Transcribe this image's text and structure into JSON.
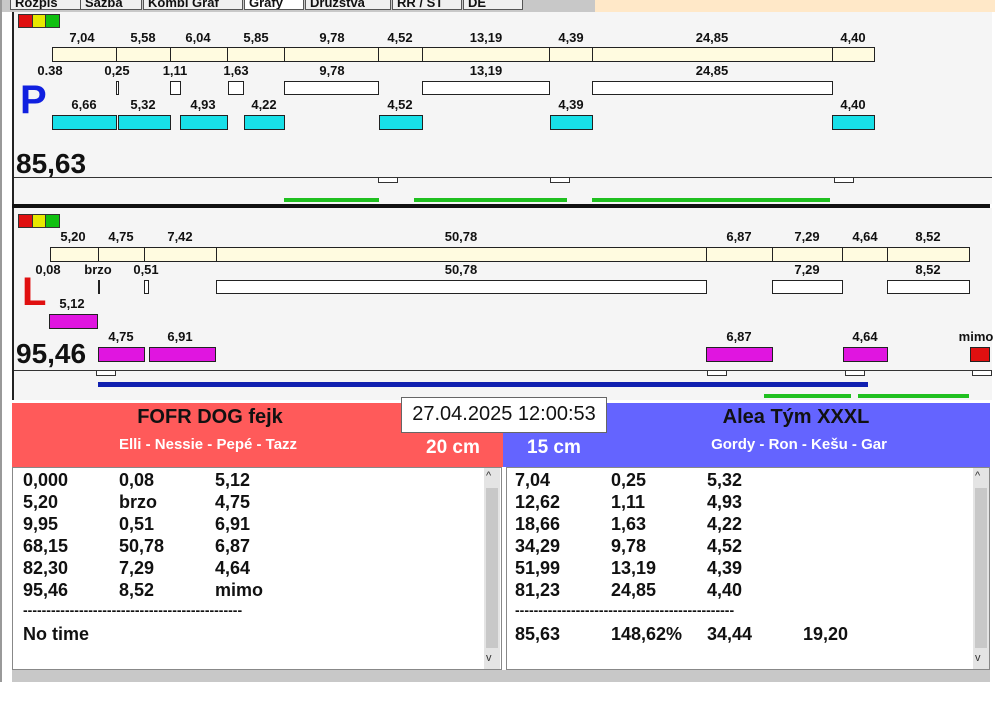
{
  "tabs": [
    "Rozpis",
    "Sazba",
    "Kombi Graf",
    "Grafy",
    "Družstva",
    "RR / ST",
    "DE"
  ],
  "colors": {
    "lightRed": "#e01010",
    "lightYellow": "#e8e800",
    "lightGreen": "#10c010",
    "left_team": "#ff5a5a",
    "right_team": "#6464ff",
    "cyan": "#18e0e8",
    "magenta": "#e015e0"
  },
  "panel_p": {
    "letter": "P",
    "total": "85,63",
    "top_labels": [
      "7,04",
      "5,58",
      "6,04",
      "5,85",
      "9,78",
      "4,52",
      "13,19",
      "4,39",
      "24,85",
      "4,40"
    ],
    "mid_labels": [
      "0.38",
      "0,25",
      "1,11",
      "1,63",
      "9,78",
      "13,19",
      "24,85"
    ],
    "bottom_labels": [
      "6,66",
      "5,32",
      "4,93",
      "4,22",
      "4,52",
      "4,39",
      "4,40"
    ]
  },
  "panel_l": {
    "letter": "L",
    "total": "95,46",
    "top_labels": [
      "5,20",
      "4,75",
      "7,42",
      "50,78",
      "6,87",
      "7,29",
      "4,64",
      "8,52"
    ],
    "mid_labels": [
      "0,08",
      "brzo",
      "0,51",
      "50,78",
      "7,29",
      "8,52"
    ],
    "low_label": "5,12",
    "bottom_labels": [
      "4,75",
      "6,91",
      "6,87",
      "4,64",
      "mimo"
    ]
  },
  "datetime": "27.04.2025 12:00:53",
  "left_team": {
    "name": "FOFR DOG fejk",
    "members": "Elli - Nessie - Pepé - Tazz",
    "cm": "20 cm",
    "rows": [
      [
        "0,000",
        "0,08",
        "5,12"
      ],
      [
        "5,20",
        "brzo",
        "4,75"
      ],
      [
        "9,95",
        "0,51",
        "6,91"
      ],
      [
        "68,15",
        "50,78",
        "6,87"
      ],
      [
        "82,30",
        "7,29",
        "4,64"
      ],
      [
        "95,46",
        "8,52",
        "mimo"
      ]
    ],
    "separator": "-----------------------------------------------",
    "footer": "No time"
  },
  "right_team": {
    "name": "Alea Tým XXXL",
    "members": "Gordy - Ron - Kešu - Gar",
    "cm": "15 cm",
    "rows": [
      [
        "7,04",
        "0,25",
        "5,32"
      ],
      [
        "12,62",
        "1,11",
        "4,93"
      ],
      [
        "18,66",
        "1,63",
        "4,22"
      ],
      [
        "34,29",
        "9,78",
        "4,52"
      ],
      [
        "51,99",
        "13,19",
        "4,39"
      ],
      [
        "81,23",
        "24,85",
        "4,40"
      ]
    ],
    "separator": "-----------------------------------------------",
    "footer": [
      "85,63",
      "148,62%",
      "34,44",
      "19,20"
    ]
  },
  "scroll_up": "^",
  "scroll_down": "v"
}
